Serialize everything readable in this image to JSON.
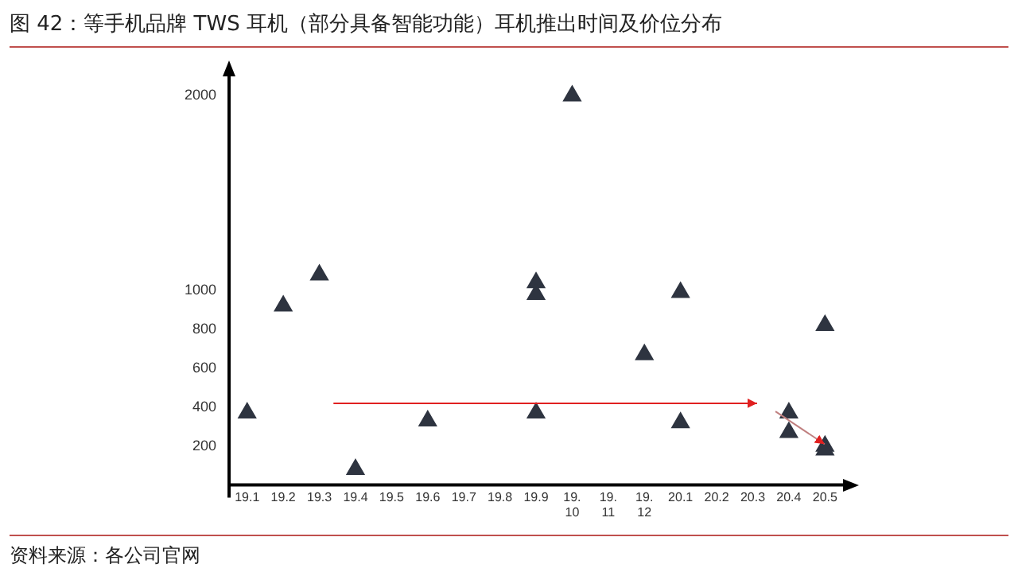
{
  "chart_data": {
    "type": "scatter",
    "title": "图 42：等手机品牌 TWS 耳机（部分具备智能功能）耳机推出时间及价位分布",
    "categories": [
      "19.1",
      "19.2",
      "19.3",
      "19.4",
      "19.5",
      "19.6",
      "19.7",
      "19.8",
      "19.9",
      "19.10",
      "19.11",
      "19.12",
      "20.1",
      "20.2",
      "20.3",
      "20.4",
      "20.5"
    ],
    "series": [
      {
        "color": "#2e3440",
        "x": [
          "19.1",
          "19.2",
          "19.3",
          "19.4",
          "19.6",
          "19.9",
          "19.9",
          "19.9",
          "19.10",
          "19.12",
          "20.1",
          "20.1",
          "20.4",
          "20.4",
          "20.5",
          "20.5",
          "20.5"
        ],
        "values": [
          370,
          920,
          1080,
          80,
          330,
          1040,
          980,
          370,
          2000,
          670,
          990,
          320,
          370,
          270,
          820,
          200,
          180
        ]
      }
    ],
    "marker": "triangle",
    "ylim": [
      0,
      2100
    ],
    "yticks": [
      200,
      400,
      600,
      800,
      1000,
      2000
    ],
    "grid": false,
    "legend": false,
    "annotations": [
      "资料来源：各公司官网"
    ]
  }
}
